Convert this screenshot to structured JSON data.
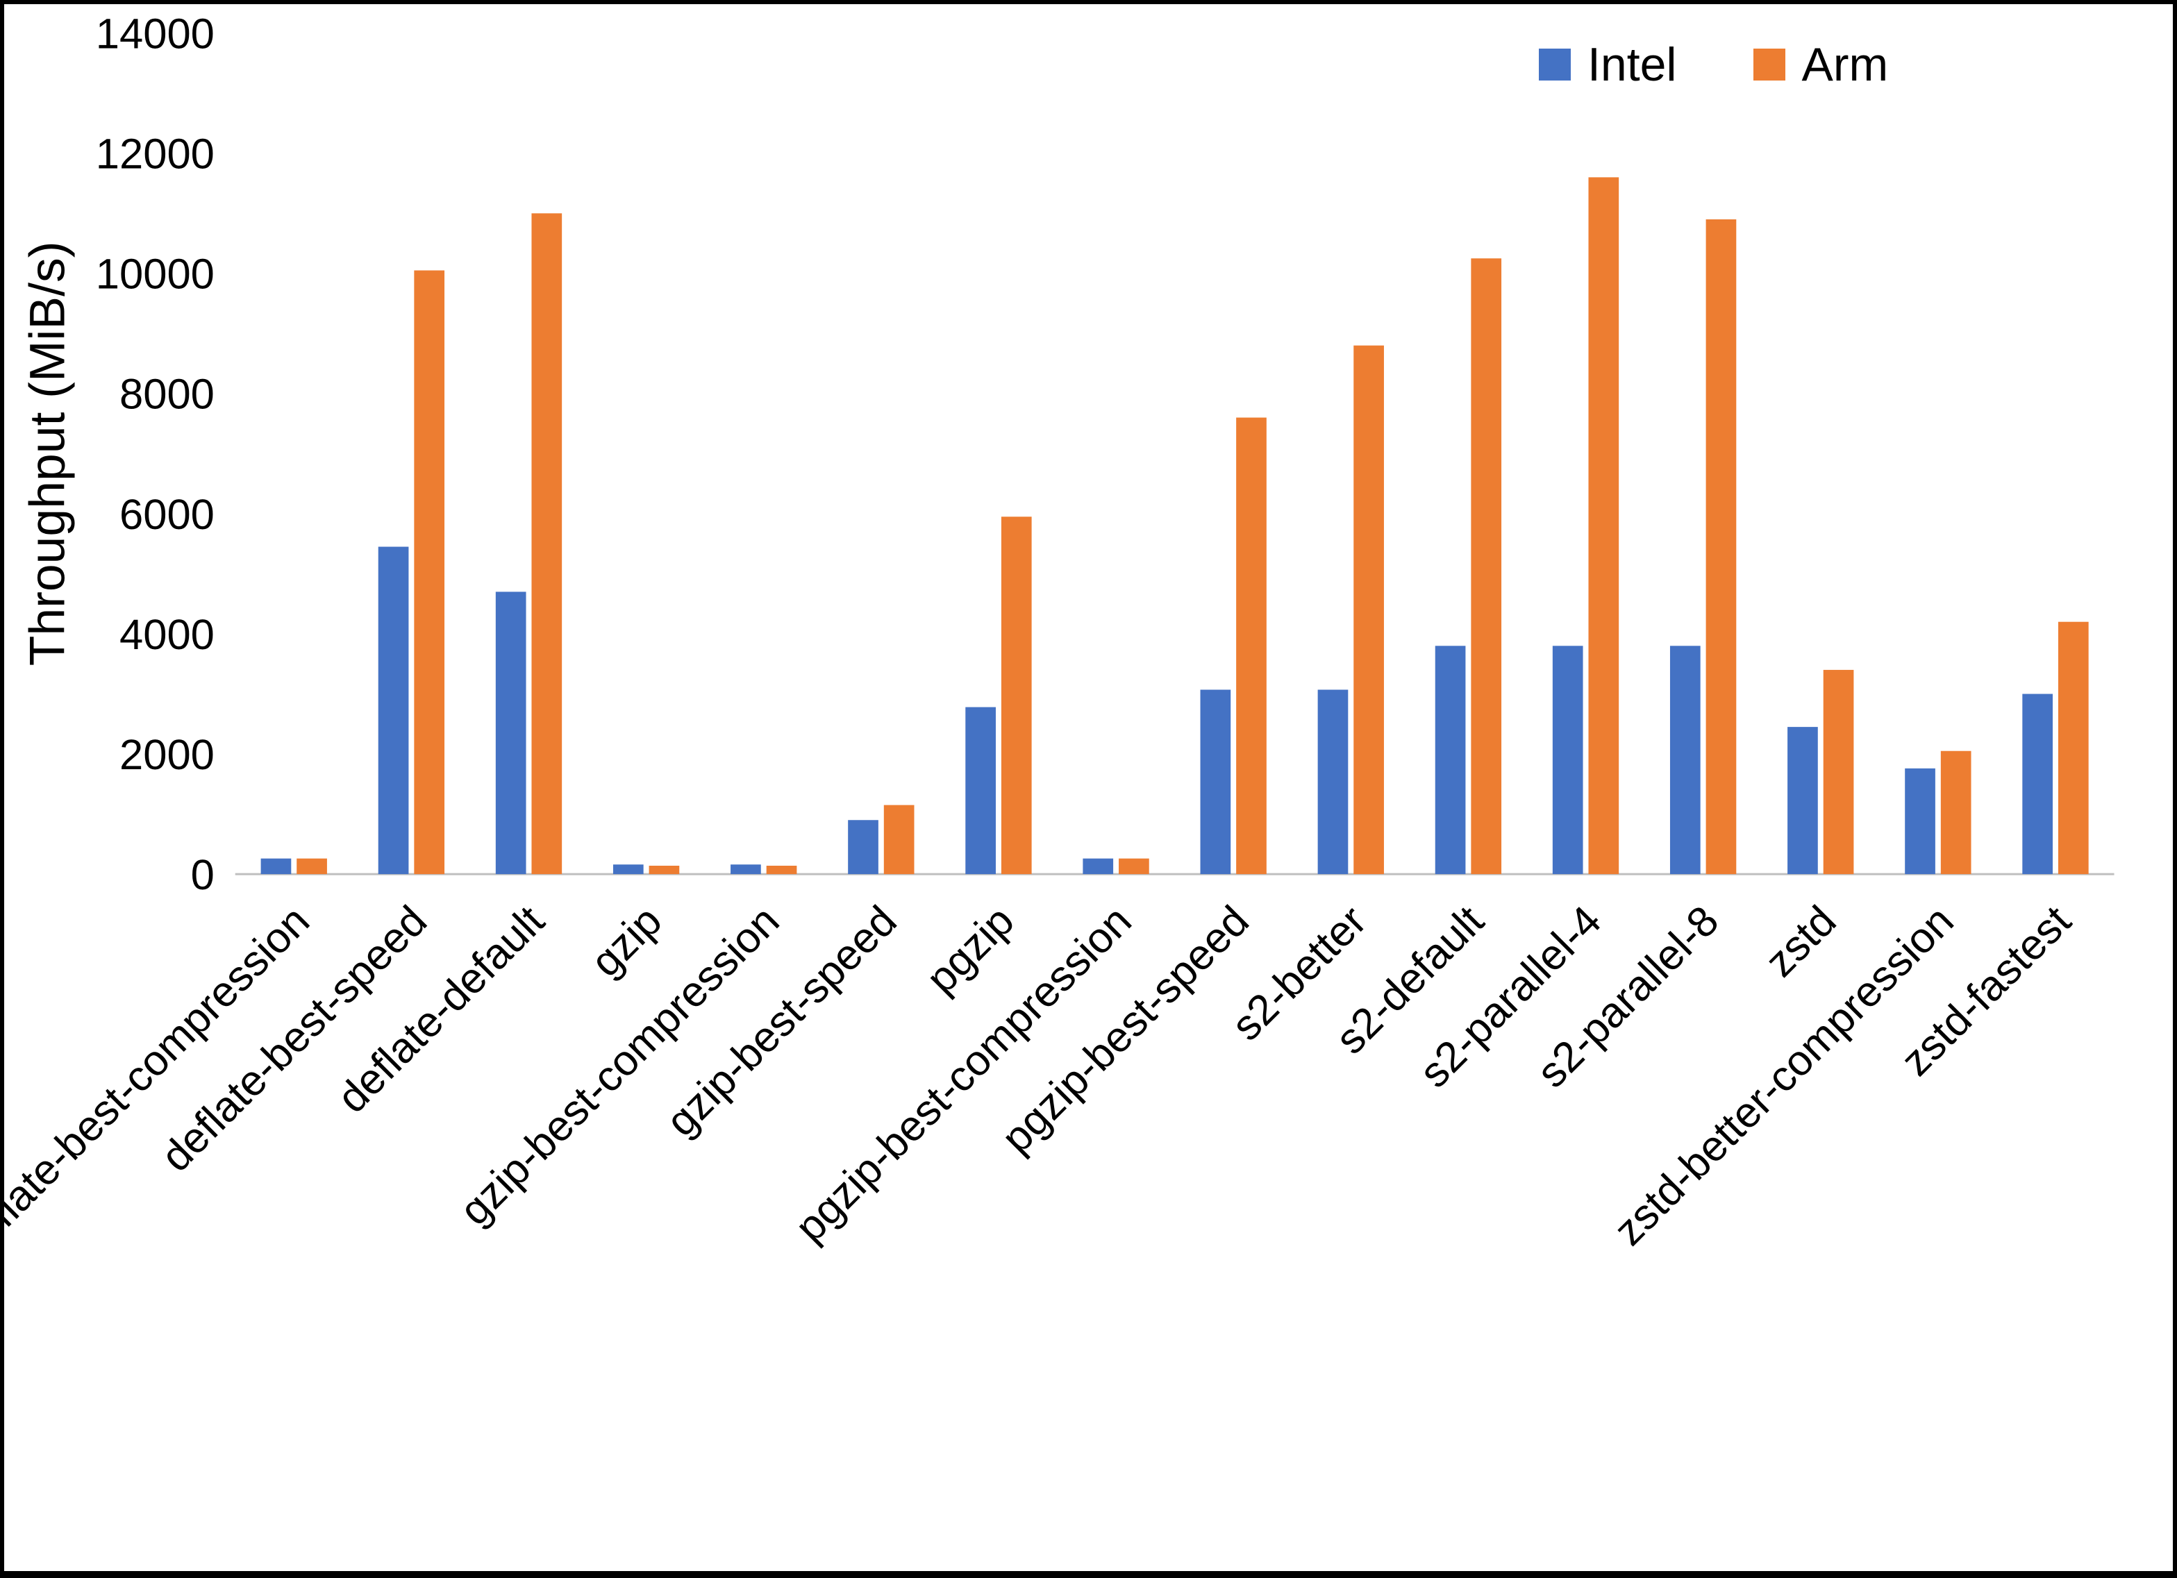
{
  "chart_data": {
    "type": "bar",
    "title": "",
    "xlabel": "",
    "ylabel": "Throughput (MiB/s)",
    "ylim": [
      0,
      14000
    ],
    "ytick_interval": 2000,
    "grid": false,
    "legend_position": "top-right",
    "categories": [
      "deflate-best-compression",
      "deflate-best-speed",
      "deflate-default",
      "gzip",
      "gzip-best-compression",
      "gzip-best-speed",
      "pgzip",
      "pgzip-best-compression",
      "pgzip-best-speed",
      "s2-better",
      "s2-default",
      "s2-parallel-4",
      "s2-parallel-8",
      "zstd",
      "zstd-better-compression",
      "zstd-fastest"
    ],
    "series": [
      {
        "name": "Intel",
        "color": "#4472C4",
        "values": [
          260,
          5450,
          4700,
          160,
          160,
          900,
          2780,
          260,
          3070,
          3070,
          3800,
          3800,
          3800,
          2450,
          1760,
          3000
        ]
      },
      {
        "name": "Arm",
        "color": "#ED7D31",
        "values": [
          260,
          10050,
          11000,
          140,
          140,
          1150,
          5950,
          260,
          7600,
          8800,
          10250,
          11600,
          10900,
          3400,
          2050,
          4200
        ]
      }
    ]
  }
}
